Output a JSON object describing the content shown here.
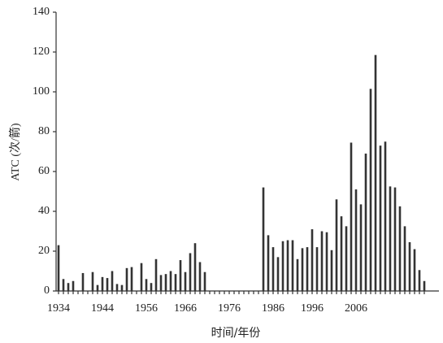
{
  "chart_data": {
    "type": "bar",
    "y_label": "ATC (次/箭)",
    "x_label": "时间/年份",
    "categories": [
      "1934",
      null,
      null,
      null,
      null,
      null,
      null,
      null,
      null,
      "1944",
      null,
      null,
      null,
      null,
      null,
      null,
      null,
      null,
      "1956",
      null,
      null,
      null,
      null,
      null,
      null,
      null,
      "1966",
      null,
      null,
      null,
      null,
      null,
      null,
      null,
      null,
      "1976",
      null,
      null,
      null,
      null,
      null,
      null,
      null,
      null,
      "1986",
      null,
      null,
      null,
      null,
      null,
      null,
      null,
      "1996",
      null,
      null,
      null,
      null,
      null,
      null,
      null,
      null,
      "2006",
      null,
      null,
      null,
      null,
      null,
      null,
      null,
      null,
      null,
      null,
      null,
      null,
      null,
      null
    ],
    "values": [
      23,
      6,
      4,
      5,
      0,
      9,
      0,
      9.5,
      3,
      7,
      6.5,
      10,
      3.5,
      3,
      11.5,
      12,
      0,
      14,
      6,
      4,
      16,
      8,
      8.5,
      10,
      8.5,
      15.5,
      9.5,
      19,
      24,
      14.5,
      9.5,
      0,
      0,
      0,
      0,
      0,
      0,
      0,
      0,
      0,
      0,
      0,
      52,
      28,
      22,
      17,
      25,
      25.5,
      25.5,
      16,
      21.5,
      22,
      31,
      22,
      30,
      29.5,
      20.5,
      46,
      37.5,
      32.5,
      74.5,
      51,
      43.5,
      69,
      101.5,
      118.5,
      73,
      75,
      52.5,
      52,
      42.5,
      32.5,
      24.5,
      21,
      10.5,
      5
    ],
    "color": "#333333",
    "ylim": [
      0,
      140
    ],
    "yticks": [
      0,
      20,
      40,
      60,
      80,
      100,
      120,
      140
    ]
  }
}
